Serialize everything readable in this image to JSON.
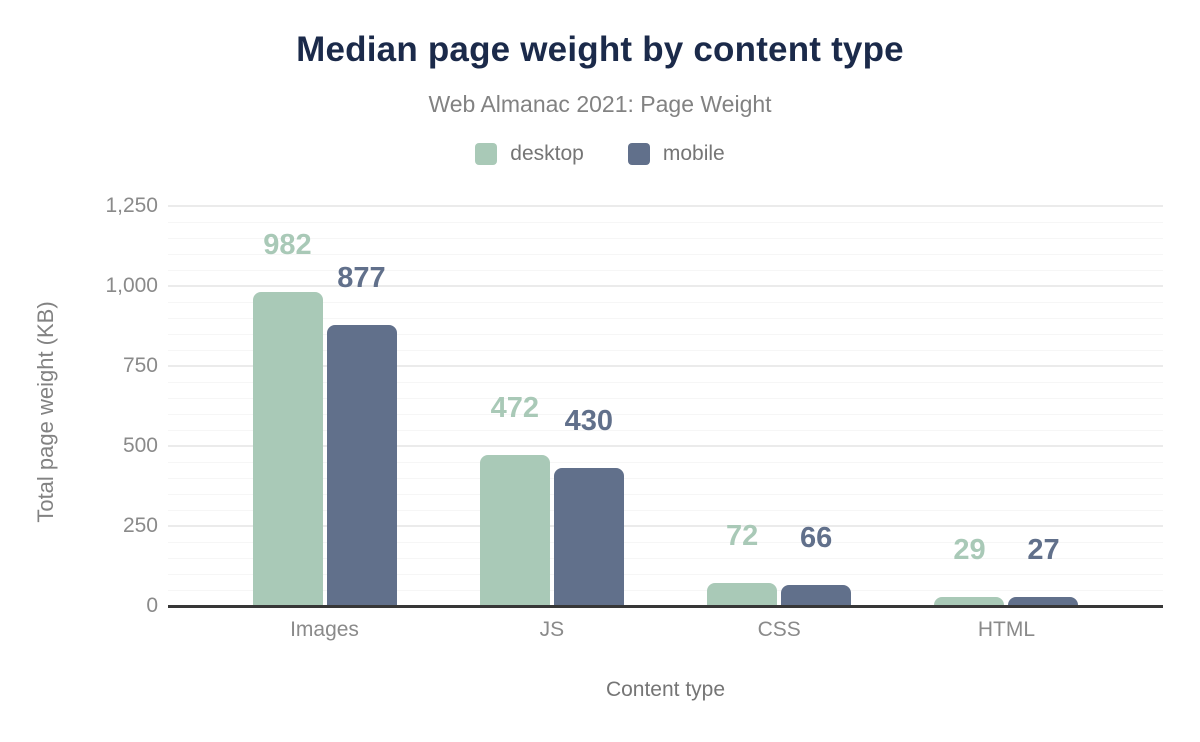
{
  "chart": {
    "title": "Median page weight by content type",
    "subtitle": "Web Almanac 2021: Page Weight"
  },
  "chart_data": {
    "type": "bar",
    "title": "Median page weight by content type",
    "subtitle": "Web Almanac 2021: Page Weight",
    "xlabel": "Content type",
    "ylabel": "Total page weight (KB)",
    "categories": [
      "Images",
      "JS",
      "CSS",
      "HTML"
    ],
    "series": [
      {
        "name": "desktop",
        "color": "#a9c9b7",
        "values": [
          982,
          472,
          72,
          29
        ]
      },
      {
        "name": "mobile",
        "color": "#61708b",
        "values": [
          877,
          430,
          66,
          27
        ]
      }
    ],
    "ylim": [
      0,
      1250
    ],
    "yticks": [
      0,
      250,
      500,
      750,
      1000,
      1250
    ],
    "ytick_labels": [
      "0",
      "250",
      "500",
      "750",
      "1,000",
      "1,250"
    ],
    "minor_grid_step": 50,
    "major_grid_step": 250,
    "grid": true,
    "data_labels": true,
    "legend_position": "top"
  },
  "colors": {
    "title": "#1b2a4a",
    "subtitle_gray": "#828282",
    "tick_gray": "#8a8a8a",
    "axis_line": "#373737",
    "major_grid": "#ebebeb",
    "minor_grid": "#f6f6f6",
    "background": "#ffffff"
  }
}
